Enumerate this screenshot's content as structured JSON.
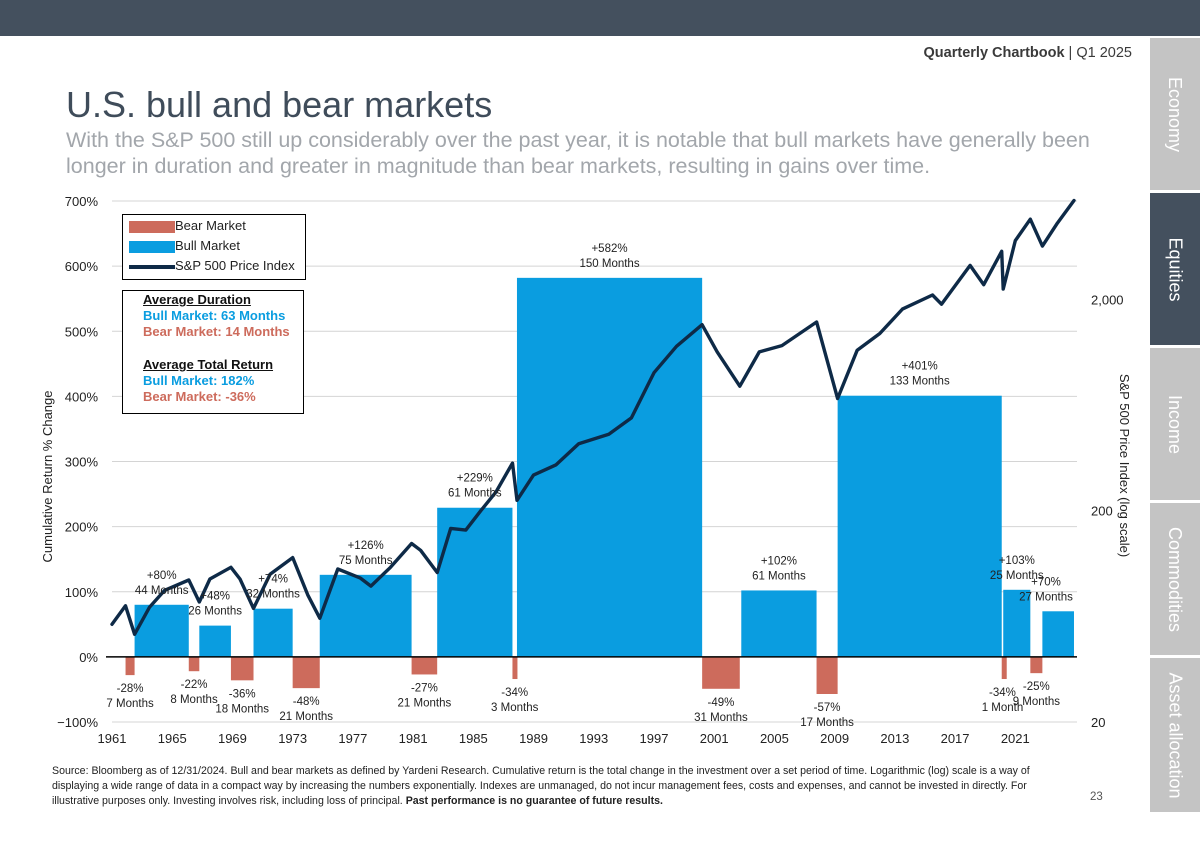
{
  "header": {
    "brand": "Quarterly Chartbook",
    "separator": " | ",
    "period": "Q1 2025"
  },
  "title": "U.S. bull and bear markets",
  "subtitle": "With the S&P 500 still up considerably over the past year, it is notable that bull markets have generally been longer in duration and greater in magnitude than bear markets, resulting in gains over time.",
  "sidebar": {
    "tabs": [
      {
        "label": "Economy",
        "active": false
      },
      {
        "label": "Equities",
        "active": true
      },
      {
        "label": "Income",
        "active": false
      },
      {
        "label": "Commodities",
        "active": false
      },
      {
        "label": "Asset allocation",
        "active": false
      }
    ]
  },
  "legend": {
    "bear": "Bear Market",
    "bull": "Bull Market",
    "index": "S&P 500 Price Index"
  },
  "stats": {
    "duration_title": "Average Duration",
    "bull_duration": "Bull Market: 63 Months",
    "bear_duration": "Bear Market: 14 Months",
    "return_title": "Average Total Return",
    "bull_return": "Bull Market:  182%",
    "bear_return": "Bear Market: -36%"
  },
  "colors": {
    "bull": "#0a9de0",
    "bear": "#cd6b5c",
    "line": "#0e2a47",
    "active_tab": "#44505e",
    "tab": "#c4c4c4"
  },
  "footnote": {
    "text": "Source: Bloomberg as of 12/31/2024. Bull and bear markets as defined by Yardeni Research. Cumulative return is the total change in the investment over a set period of time. Logarithmic (log) scale is a way of displaying a wide range of data in a compact way by increasing the numbers exponentially. Indexes are unmanaged, do not incur management fees, costs and expenses, and cannot be invested in directly. For illustrative purposes only. Investing involves risk, including loss of principal. ",
    "bold": "Past performance is no guarantee of future results."
  },
  "page_number": "23",
  "chart_data": {
    "type": "bar+line",
    "ylabel": "Cumulative Return % Change",
    "y2label": "S&P 500 Price Index (log scale)",
    "ylim": [
      -100,
      700
    ],
    "yticks": [
      -100,
      0,
      100,
      200,
      300,
      400,
      500,
      600,
      700
    ],
    "ytick_labels": [
      "−100%",
      "0%",
      "100%",
      "200%",
      "300%",
      "400%",
      "500%",
      "600%",
      "700%"
    ],
    "y2lim": [
      20,
      5850
    ],
    "y2ticks": [
      20,
      200,
      2000
    ],
    "y2tick_labels": [
      "20",
      "200",
      "2,000"
    ],
    "xlim": [
      1961,
      2025.1
    ],
    "xticks": [
      1961,
      1965,
      1969,
      1973,
      1977,
      1981,
      1985,
      1989,
      1993,
      1997,
      2001,
      2005,
      2009,
      2013,
      2017,
      2021
    ],
    "bars": [
      {
        "kind": "bear",
        "start": 1961.9,
        "end": 1962.5,
        "value": -28,
        "label": [
          "-28%",
          "7 Months"
        ]
      },
      {
        "kind": "bull",
        "start": 1962.5,
        "end": 1966.1,
        "value": 80,
        "label": [
          "+80%",
          "44 Months"
        ]
      },
      {
        "kind": "bear",
        "start": 1966.1,
        "end": 1966.8,
        "value": -22,
        "label": [
          "-22%",
          "8 Months"
        ]
      },
      {
        "kind": "bull",
        "start": 1966.8,
        "end": 1968.9,
        "value": 48,
        "label": [
          "+48%",
          "26 Months"
        ]
      },
      {
        "kind": "bear",
        "start": 1968.9,
        "end": 1970.4,
        "value": -36,
        "label": [
          "-36%",
          "18 Months"
        ]
      },
      {
        "kind": "bull",
        "start": 1970.4,
        "end": 1973.0,
        "value": 74,
        "label": [
          "+74%",
          "32 Months"
        ]
      },
      {
        "kind": "bear",
        "start": 1973.0,
        "end": 1974.8,
        "value": -48,
        "label": [
          "-48%",
          "21 Months"
        ]
      },
      {
        "kind": "bull",
        "start": 1974.8,
        "end": 1980.9,
        "value": 126,
        "label": [
          "+126%",
          "75 Months"
        ]
      },
      {
        "kind": "bear",
        "start": 1980.9,
        "end": 1982.6,
        "value": -27,
        "label": [
          "-27%",
          "21 Months"
        ]
      },
      {
        "kind": "bull",
        "start": 1982.6,
        "end": 1987.6,
        "value": 229,
        "label": [
          "+229%",
          "61 Months"
        ]
      },
      {
        "kind": "bear",
        "start": 1987.6,
        "end": 1987.9,
        "value": -34,
        "label": [
          "-34%",
          "3 Months"
        ]
      },
      {
        "kind": "bull",
        "start": 1987.9,
        "end": 2000.2,
        "value": 582,
        "label": [
          "+582%",
          "150 Months"
        ]
      },
      {
        "kind": "bear",
        "start": 2000.2,
        "end": 2002.7,
        "value": -49,
        "label": [
          "-49%",
          "31 Months"
        ]
      },
      {
        "kind": "bull",
        "start": 2002.8,
        "end": 2007.8,
        "value": 102,
        "label": [
          "+102%",
          "61 Months"
        ]
      },
      {
        "kind": "bear",
        "start": 2007.8,
        "end": 2009.2,
        "value": -57,
        "label": [
          "-57%",
          "17 Months"
        ]
      },
      {
        "kind": "bull",
        "start": 2009.2,
        "end": 2020.1,
        "value": 401,
        "label": [
          "+401%",
          "133 Months"
        ]
      },
      {
        "kind": "bear",
        "start": 2020.1,
        "end": 2020.2,
        "value": -34,
        "label": [
          "-34%",
          "1 Month"
        ]
      },
      {
        "kind": "bull",
        "start": 2020.2,
        "end": 2022.0,
        "value": 103,
        "label": [
          "+103%",
          "25 Months"
        ]
      },
      {
        "kind": "bear",
        "start": 2022.0,
        "end": 2022.8,
        "value": -25,
        "label": [
          "-25%",
          "9 Months"
        ]
      },
      {
        "kind": "bull",
        "start": 2022.8,
        "end": 2024.9,
        "value": 70,
        "label": [
          "+70%",
          "27 Months"
        ]
      }
    ],
    "sp500": {
      "x": [
        1961.0,
        1961.9,
        1962.5,
        1963.5,
        1964.5,
        1966.1,
        1966.8,
        1967.5,
        1968.9,
        1969.5,
        1970.4,
        1971.5,
        1973.0,
        1974.0,
        1974.8,
        1976.0,
        1977.5,
        1978.2,
        1979.5,
        1980.9,
        1981.5,
        1982.6,
        1983.5,
        1984.5,
        1985.5,
        1986.5,
        1987.6,
        1987.9,
        1989.0,
        1990.5,
        1992.0,
        1994.0,
        1995.5,
        1997.0,
        1998.5,
        2000.2,
        2001.2,
        2002.7,
        2004.0,
        2005.5,
        2007.8,
        2009.2,
        2010.5,
        2012.0,
        2013.5,
        2015.5,
        2016.1,
        2018.0,
        2018.9,
        2020.1,
        2020.2,
        2021.0,
        2022.0,
        2022.8,
        2023.8,
        2024.9
      ],
      "y": [
        58,
        71,
        52,
        70,
        84,
        94,
        74,
        95,
        108,
        95,
        69,
        100,
        120,
        80,
        62,
        106,
        96,
        88,
        108,
        140,
        130,
        102,
        165,
        162,
        200,
        245,
        336,
        224,
        295,
        330,
        415,
        460,
        550,
        900,
        1200,
        1520,
        1130,
        777,
        1130,
        1210,
        1565,
        680,
        1150,
        1380,
        1800,
        2100,
        1900,
        2900,
        2350,
        3380,
        2240,
        3800,
        4800,
        3580,
        4600,
        5880
      ]
    }
  }
}
